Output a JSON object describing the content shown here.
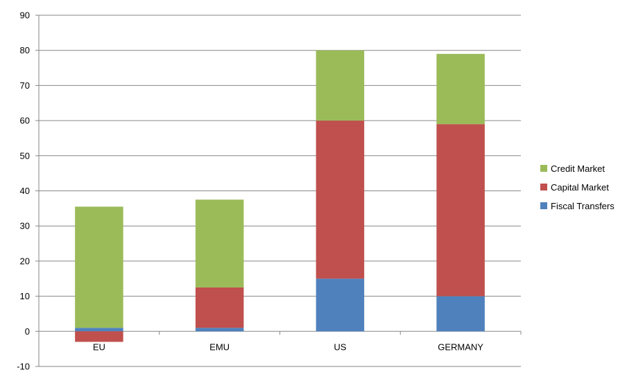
{
  "chart_data": {
    "type": "bar",
    "stacked": true,
    "title": "",
    "xlabel": "",
    "ylabel": "",
    "categories": [
      "EU",
      "EMU",
      "US",
      "GERMANY"
    ],
    "ylim": [
      -10,
      90
    ],
    "yticks": [
      -10,
      0,
      10,
      20,
      30,
      40,
      50,
      60,
      70,
      80,
      90
    ],
    "grid": true,
    "legend_position": "right",
    "series": [
      {
        "name": "Fiscal Transfers",
        "color": "#4F81BD",
        "values": [
          1,
          1,
          15,
          10
        ]
      },
      {
        "name": "Capital Market",
        "color": "#C0504D",
        "values": [
          -3,
          11.5,
          45,
          49
        ]
      },
      {
        "name": "Credit Market",
        "color": "#9BBB59",
        "values": [
          34.5,
          25,
          20,
          20
        ]
      }
    ]
  }
}
